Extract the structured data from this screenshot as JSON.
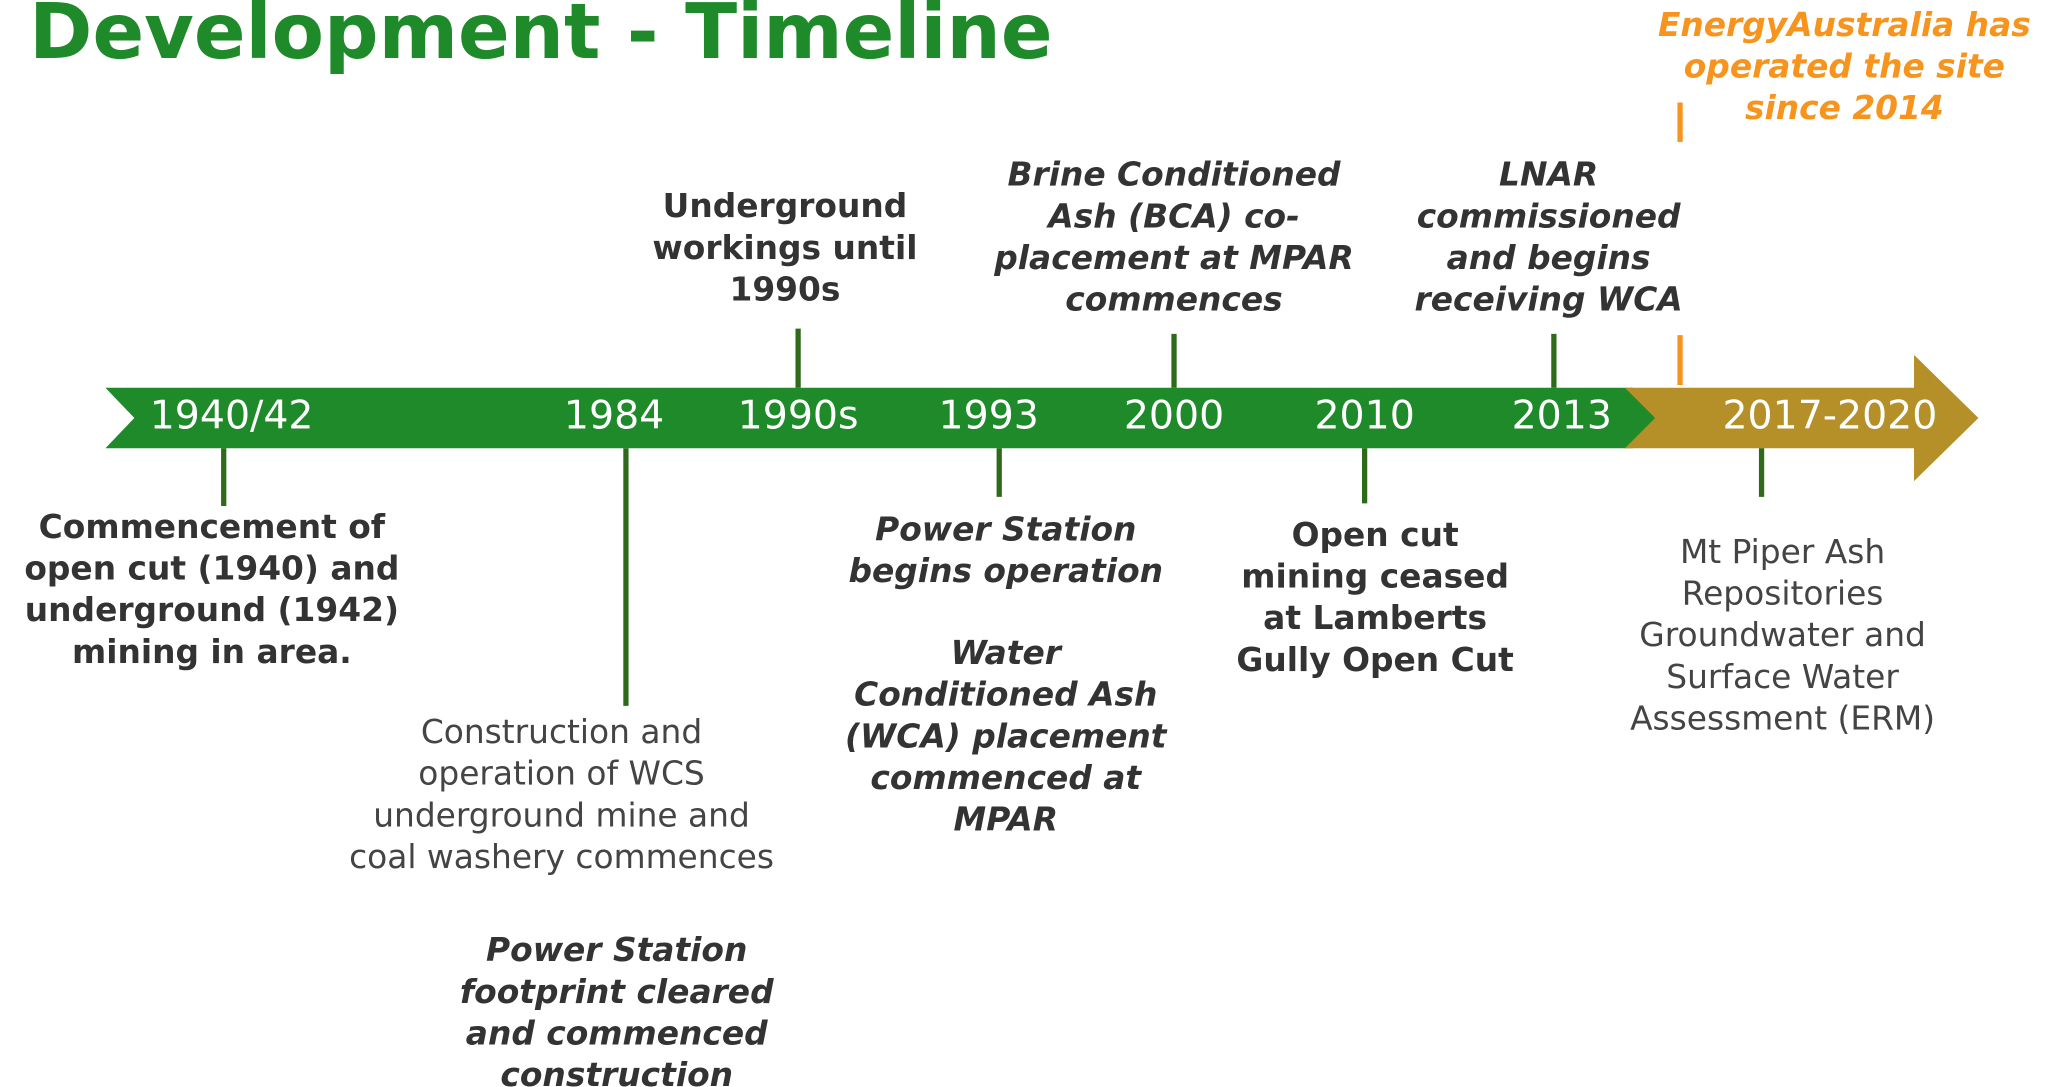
{
  "header": {
    "title": "Development - Timeline"
  },
  "timeline": {
    "labels": [
      "1940/42",
      "1984",
      "1990s",
      "1993",
      "2000",
      "2010",
      "2013",
      "2017-2020"
    ]
  },
  "events": [
    {
      "lines": [
        "Underground",
        "workings until",
        "1990s"
      ]
    },
    {
      "lines": [
        "Brine Conditioned",
        "Ash (BCA) co-",
        "placement at MPAR",
        "commences"
      ]
    },
    {
      "lines": [
        "LNAR",
        "commissioned",
        "and begins",
        "receiving WCA"
      ]
    },
    {
      "lines": [
        "EnergyAustralia has",
        "operated the site",
        "since 2014"
      ]
    },
    {
      "lines": [
        "Commencement of",
        "open cut (1940) and",
        "underground (1942)",
        "mining in area."
      ]
    },
    {
      "lines": [
        "Construction and",
        "operation of WCS",
        "underground mine and",
        "coal washery commences"
      ]
    },
    {
      "lines": [
        "Power Station",
        "footprint cleared",
        "and commenced",
        "construction"
      ]
    },
    {
      "lines": [
        "Power Station",
        "begins operation"
      ]
    },
    {
      "lines": [
        "Water",
        "Conditioned Ash",
        "(WCA) placement",
        "commenced at",
        "MPAR"
      ]
    },
    {
      "lines": [
        "Open cut",
        "mining ceased",
        "at Lamberts",
        "Gully Open Cut"
      ]
    },
    {
      "lines": [
        "Mt Piper Ash",
        "Repositories",
        "Groundwater and",
        "Surface Water",
        "Assessment (ERM)"
      ]
    }
  ]
}
